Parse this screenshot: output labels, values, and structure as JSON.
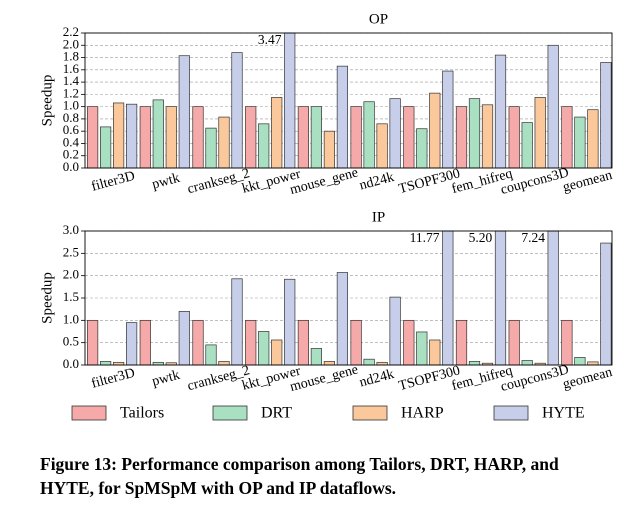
{
  "chart_data": [
    {
      "type": "bar",
      "title": "OP",
      "y_label": "Speedup",
      "categories": [
        "filter3D",
        "pwtk",
        "crankseg_2",
        "kkt_power",
        "mouse_gene",
        "nd24k",
        "TSOPF300",
        "fem_hifreq",
        "coupcons3D",
        "geomean"
      ],
      "series": [
        {
          "name": "Tailors",
          "color": "#f5a9a9",
          "values": [
            1.0,
            1.0,
            1.0,
            1.0,
            1.0,
            1.0,
            1.0,
            1.0,
            1.0,
            1.0
          ]
        },
        {
          "name": "DRT",
          "color": "#a9e0c2",
          "values": [
            0.67,
            1.11,
            0.65,
            0.72,
            1.0,
            1.08,
            0.64,
            1.13,
            0.74,
            0.83
          ]
        },
        {
          "name": "HARP",
          "color": "#fbc89c",
          "values": [
            1.06,
            1.0,
            0.83,
            1.15,
            0.6,
            0.72,
            1.22,
            1.03,
            1.15,
            0.95
          ]
        },
        {
          "name": "HYTE",
          "color": "#c6cee9",
          "values": [
            1.04,
            1.83,
            1.88,
            3.47,
            1.66,
            1.13,
            1.58,
            1.84,
            2.0,
            1.72
          ],
          "value_labels": [
            null,
            null,
            null,
            "3.47",
            null,
            null,
            null,
            null,
            null,
            null
          ]
        }
      ],
      "ylim": [
        0,
        2.2
      ],
      "yticks": [
        {
          "value": 0,
          "label": "0.0"
        },
        0.2,
        0.4,
        0.6,
        0.8,
        {
          "value": 1,
          "label": "1.0"
        },
        1.2,
        1.4,
        1.6,
        1.8,
        {
          "value": 2,
          "label": "2.0"
        },
        2.2
      ],
      "grid": true
    },
    {
      "type": "bar",
      "title": "IP",
      "y_label": "Speedup",
      "categories": [
        "filter3D",
        "pwtk",
        "crankseg_2",
        "kkt_power",
        "mouse_gene",
        "nd24k",
        "TSOPF300",
        "fem_hifreq",
        "coupcons3D",
        "geomean"
      ],
      "series": [
        {
          "color": "#f5a9a9",
          "values": [
            1.0,
            1.0,
            1.0,
            1.0,
            1.0,
            1.0,
            1.0,
            1.0,
            1.0,
            1.0
          ]
        },
        {
          "color": "#a9e0c2",
          "values": [
            0.08,
            0.06,
            0.45,
            0.75,
            0.37,
            0.13,
            0.74,
            0.08,
            0.1,
            0.17
          ]
        },
        {
          "color": "#fbc89c",
          "values": [
            0.06,
            0.05,
            0.08,
            0.56,
            0.08,
            0.06,
            0.56,
            0.04,
            0.04,
            0.07
          ]
        },
        {
          "color": "#c6cee9",
          "values": [
            0.95,
            1.2,
            1.93,
            1.92,
            2.07,
            1.52,
            11.77,
            5.2,
            7.24,
            2.73
          ],
          "value_labels": [
            null,
            null,
            null,
            null,
            null,
            null,
            "11.77",
            "5.20",
            "7.24",
            null
          ]
        }
      ],
      "ylim": [
        0,
        3.0
      ],
      "yticks": [
        {
          "value": 0,
          "label": "0.0"
        },
        0.5,
        {
          "value": 1,
          "label": "1.0"
        },
        1.5,
        {
          "value": 2,
          "label": "2.0"
        },
        2.5,
        {
          "value": 3,
          "label": "3.0"
        }
      ],
      "grid": true
    }
  ],
  "caption": "Figure 13: Performance comparison among Tailors, DRT, HARP, and HYTE, for SpMSpM with OP and IP dataflows."
}
